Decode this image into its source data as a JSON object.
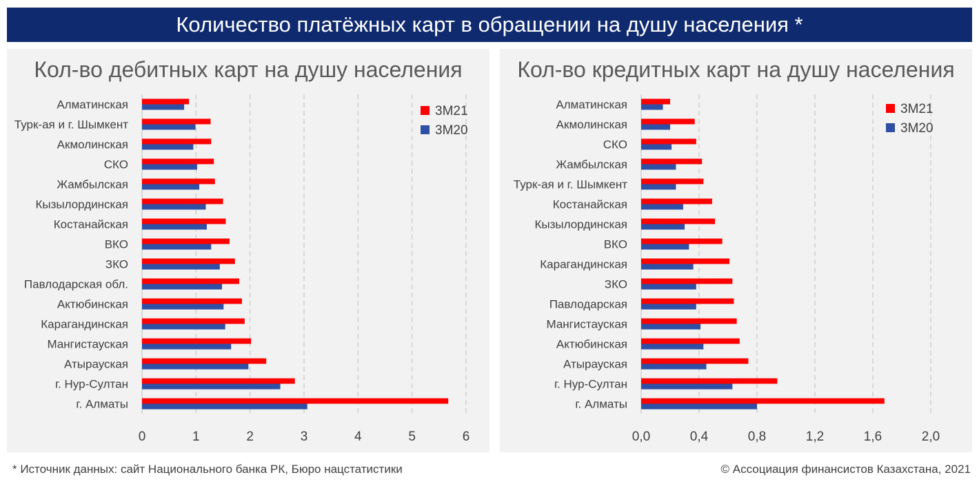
{
  "header": {
    "title": "Количество платёжных карт в обращении на душу населения *"
  },
  "colors": {
    "series_3m21": "#ff0000",
    "series_3m20": "#2e4fa3",
    "title_bg": "#0f2a6e"
  },
  "chart_data": [
    {
      "type": "bar",
      "orientation": "horizontal",
      "title": "Кол-во дебитных карт на душу населения",
      "categories": [
        "Алматинская",
        "Турк-ая и г. Шымкент",
        "Акмолинская",
        "СКО",
        "Жамбылская",
        "Кызылординская",
        "Костанайская",
        "ВКО",
        "ЗКО",
        "Павлодарская обл.",
        "Актюбинская",
        "Карагандинская",
        "Мангистауская",
        "Атырауская",
        "г. Нур-Султан",
        "г. Алматы"
      ],
      "series": [
        {
          "name": "3M21",
          "values": [
            0.87,
            1.27,
            1.28,
            1.33,
            1.35,
            1.5,
            1.55,
            1.62,
            1.72,
            1.8,
            1.85,
            1.9,
            2.02,
            2.3,
            2.83,
            5.67
          ]
        },
        {
          "name": "3M20",
          "values": [
            0.78,
            0.99,
            0.95,
            1.02,
            1.06,
            1.18,
            1.2,
            1.28,
            1.44,
            1.48,
            1.51,
            1.54,
            1.65,
            1.97,
            2.56,
            3.06
          ]
        }
      ],
      "xlim": [
        0,
        6
      ],
      "ticks": [
        "0",
        "1",
        "2",
        "3",
        "4",
        "5",
        "6"
      ],
      "tick_values": [
        0,
        1,
        2,
        3,
        4,
        5,
        6
      ],
      "grid": true,
      "legend": "top-right"
    },
    {
      "type": "bar",
      "orientation": "horizontal",
      "title": "Кол-во кредитных карт на душу населения",
      "categories": [
        "Алматинская",
        "Акмолинская",
        "СКО",
        "Жамбылская",
        "Турк-ая и г. Шымкент",
        "Костанайская",
        "Кызылординская",
        "ВКО",
        "Карагандинская",
        "ЗКО",
        "Павлодарская",
        "Мангистауская",
        "Актюбинская",
        "Атырауская",
        "г. Нур-Султан",
        "г. Алматы"
      ],
      "series": [
        {
          "name": "3M21",
          "values": [
            0.2,
            0.37,
            0.38,
            0.42,
            0.43,
            0.49,
            0.51,
            0.56,
            0.61,
            0.63,
            0.64,
            0.66,
            0.68,
            0.74,
            0.94,
            1.68
          ]
        },
        {
          "name": "3M20",
          "values": [
            0.15,
            0.2,
            0.21,
            0.24,
            0.24,
            0.29,
            0.3,
            0.33,
            0.36,
            0.38,
            0.38,
            0.41,
            0.43,
            0.45,
            0.63,
            0.8
          ]
        }
      ],
      "xlim": [
        0,
        2
      ],
      "ticks": [
        "0,0",
        "0,4",
        "0,8",
        "1,2",
        "1,6",
        "2,0"
      ],
      "tick_values": [
        0,
        0.4,
        0.8,
        1.2,
        1.6,
        2.0
      ],
      "grid": true,
      "legend": "top-right"
    }
  ],
  "footer": {
    "source": "* Источник данных: сайт Национального банка РК, Бюро нацстатистики",
    "copyright": "© Ассоциация финансистов Казахстана, 2021"
  }
}
